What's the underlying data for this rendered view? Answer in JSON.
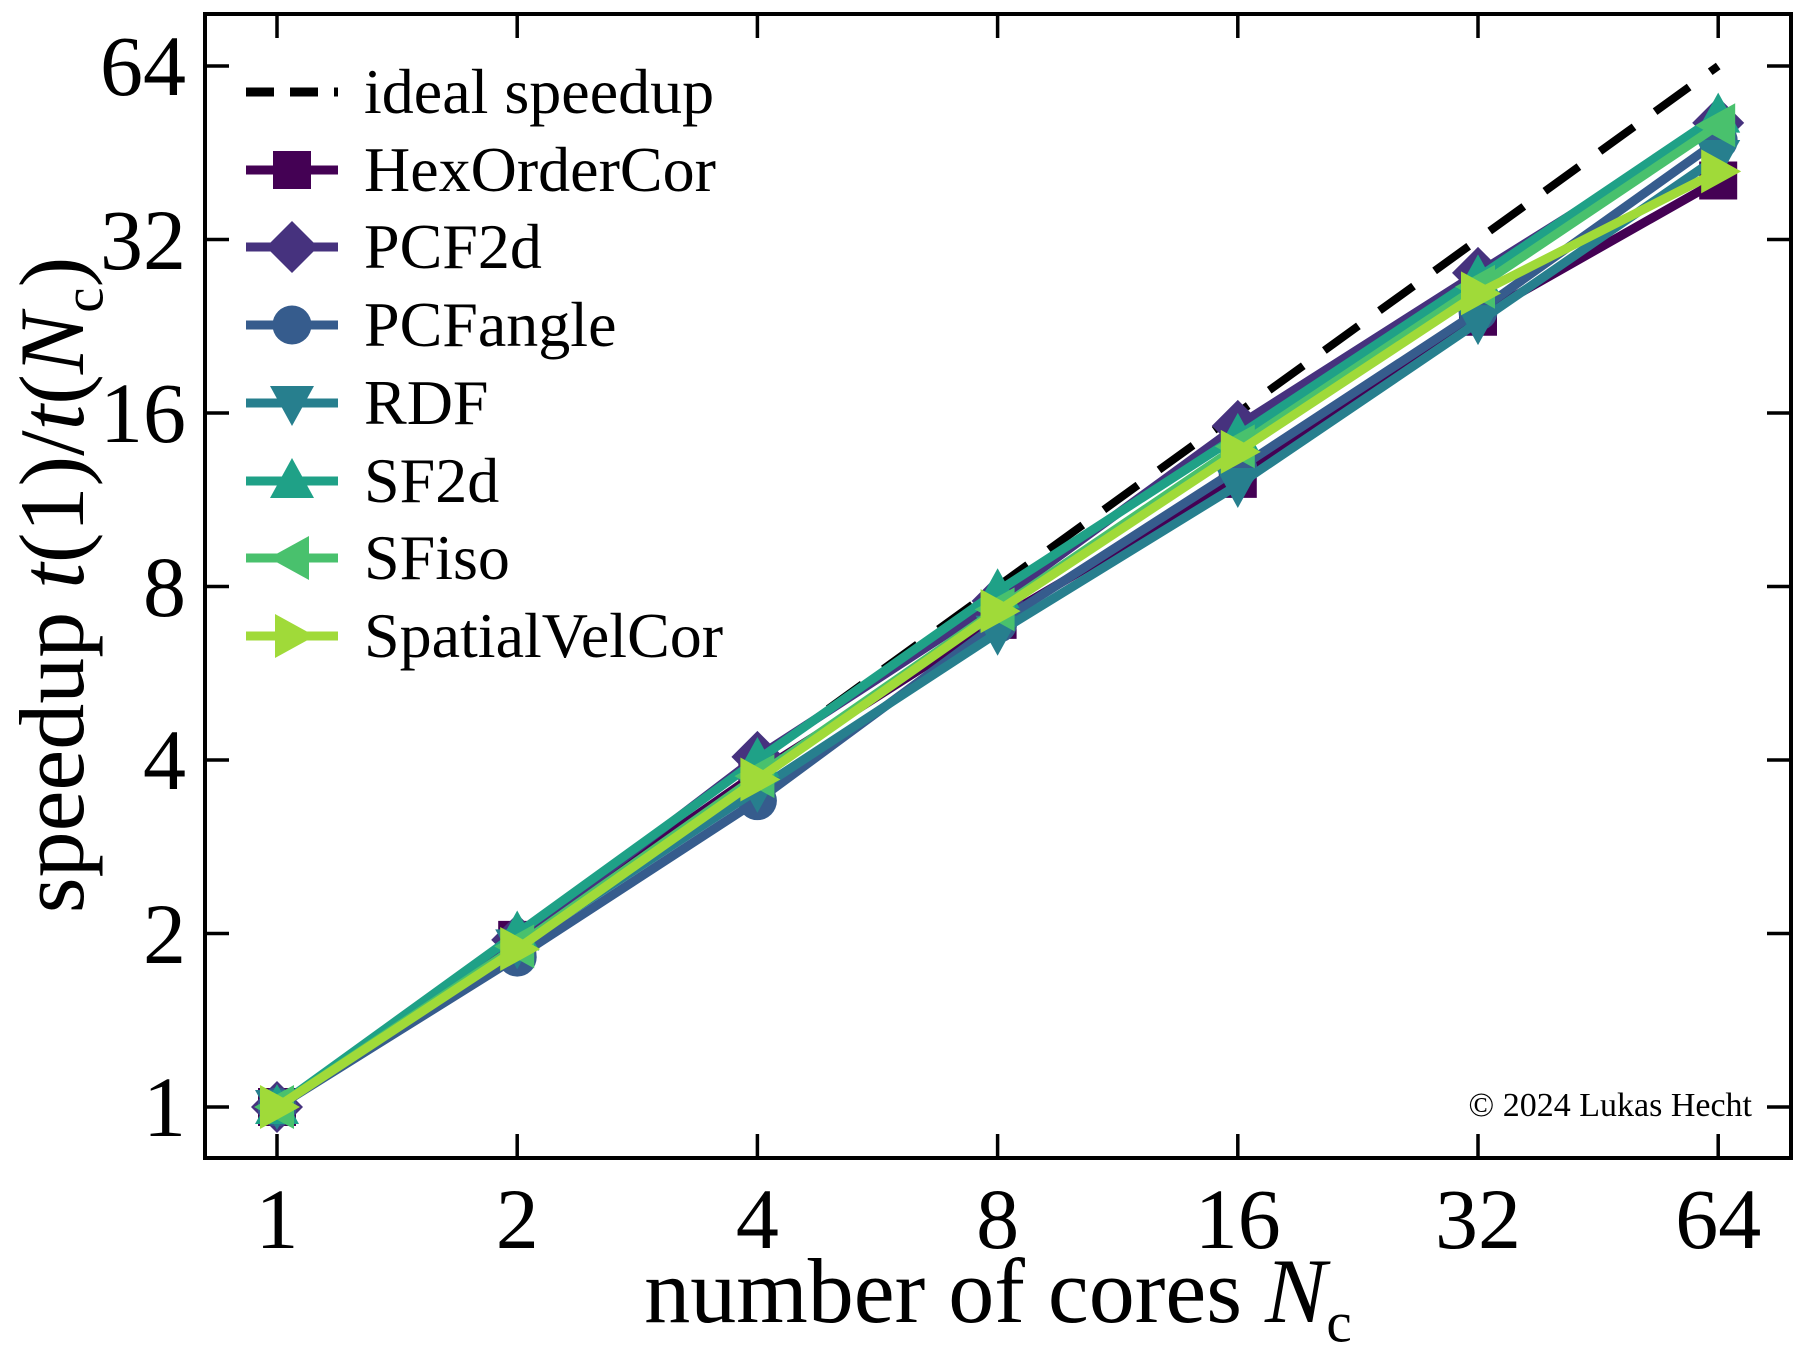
{
  "figure": {
    "copyright": "© 2024 Lukas Hecht"
  },
  "axes": {
    "xlabel": {
      "word": "number of cores ",
      "var": "N",
      "sub": "c"
    },
    "ylabel": {
      "word": "speedup ",
      "t": "t",
      "mid": "(1)/",
      "open": "(",
      "var": "N",
      "sub": "c",
      "close": ")"
    },
    "xticks": [
      "1",
      "2",
      "4",
      "8",
      "16",
      "32",
      "64"
    ],
    "yticks": [
      "1",
      "2",
      "4",
      "8",
      "16",
      "32",
      "64"
    ]
  },
  "chart_data": {
    "type": "line",
    "title": "",
    "xlabel": "number of cores N_c",
    "ylabel": "speedup t(1)/t(N_c)",
    "x_scale": "log2",
    "y_scale": "log2",
    "xlim": [
      0.81,
      79
    ],
    "ylim": [
      0.82,
      80
    ],
    "grid": false,
    "legend_position": "upper left",
    "x": [
      1,
      2,
      4,
      8,
      16,
      32,
      64
    ],
    "ideal": {
      "label": "ideal speedup",
      "color": "#000000",
      "style": "dashed",
      "x": [
        1,
        64
      ],
      "y": [
        1,
        64
      ]
    },
    "series": [
      {
        "name": "HexOrderCor",
        "color": "#440154",
        "marker": "square",
        "values": [
          1,
          1.95,
          3.8,
          7.0,
          12.3,
          23.5,
          40.5
        ]
      },
      {
        "name": "PCF2d",
        "color": "#46327e",
        "marker": "diamond",
        "values": [
          1,
          1.95,
          4.05,
          7.55,
          15.2,
          28.0,
          51.0
        ]
      },
      {
        "name": "PCFangle",
        "color": "#365c8d",
        "marker": "circle",
        "values": [
          1,
          1.82,
          3.4,
          6.9,
          12.8,
          24.0,
          47.5
        ]
      },
      {
        "name": "RDF",
        "color": "#277f8e",
        "marker": "triangle-down",
        "values": [
          1,
          1.9,
          3.55,
          6.65,
          12.0,
          23.0,
          44.5
        ]
      },
      {
        "name": "SF2d",
        "color": "#1fa187",
        "marker": "triangle-up",
        "values": [
          1,
          2.0,
          4.0,
          7.85,
          14.6,
          27.5,
          52.5
        ]
      },
      {
        "name": "SFiso",
        "color": "#49c16d",
        "marker": "triangle-left",
        "values": [
          1,
          1.9,
          3.75,
          7.3,
          14.0,
          26.5,
          50.5
        ]
      },
      {
        "name": "SpatialVelCor",
        "color": "#a0da39",
        "marker": "triangle-right",
        "values": [
          1,
          1.88,
          3.7,
          7.25,
          13.7,
          25.8,
          42.0
        ]
      }
    ]
  }
}
